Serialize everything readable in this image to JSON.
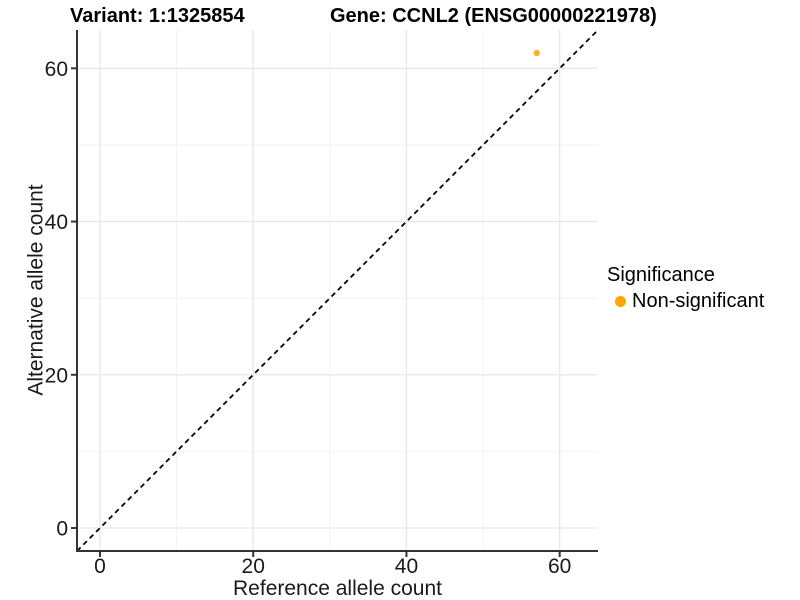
{
  "titles": {
    "variant": "Variant: 1:1325854",
    "gene": "Gene: CCNL2 (ENSG00000221978)"
  },
  "chart_data": {
    "type": "scatter",
    "title_left": "Variant: 1:1325854",
    "title_right": "Gene: CCNL2 (ENSG00000221978)",
    "xlabel": "Reference allele count",
    "ylabel": "Alternative allele count",
    "xlim": [
      -3,
      65
    ],
    "ylim": [
      -3,
      65
    ],
    "xticks": [
      0,
      20,
      40,
      60
    ],
    "yticks": [
      0,
      20,
      40,
      60
    ],
    "minor_xticks": [
      10,
      30,
      50
    ],
    "minor_yticks": [
      10,
      30,
      50
    ],
    "grid": "major and minor gridlines, white panel background",
    "reference_line": {
      "type": "identity y=x",
      "style": "dashed",
      "color": "#000000"
    },
    "series": [
      {
        "name": "Non-significant",
        "color": "#FFA500",
        "point_radius": 3.2,
        "point_opacity": 0.85,
        "points": [
          {
            "x": 57,
            "y": 62
          }
        ]
      }
    ],
    "legend": {
      "title": "Significance",
      "position": "right",
      "items": [
        {
          "label": "Non-significant",
          "color": "#FFA500"
        }
      ]
    }
  },
  "style": {
    "background": "#FFFFFF",
    "grid_major_color": "#E7E7E7",
    "grid_minor_color": "#F2F2F2",
    "axis_color": "#333333",
    "tick_label_color": "#1A1A1A",
    "title_color": "#000000"
  }
}
